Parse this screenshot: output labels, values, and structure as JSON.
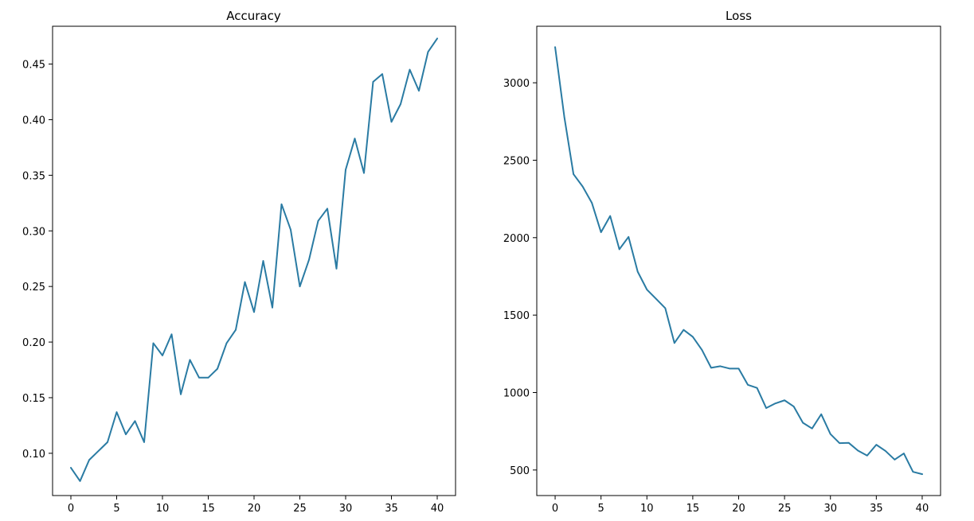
{
  "chart_data": [
    {
      "type": "line",
      "title": "Accuracy",
      "xlabel": "",
      "ylabel": "",
      "xlim": [
        -2,
        42
      ],
      "ylim": [
        0.062,
        0.484
      ],
      "xticks": [
        0,
        5,
        10,
        15,
        20,
        25,
        30,
        35,
        40
      ],
      "yticks": [
        0.1,
        0.15,
        0.2,
        0.25,
        0.3,
        0.35,
        0.4,
        0.45
      ],
      "ytick_labels": [
        "0.10",
        "0.15",
        "0.20",
        "0.25",
        "0.30",
        "0.35",
        "0.40",
        "0.45"
      ],
      "grid": false,
      "color": "#2a7ba3",
      "x": [
        0,
        1,
        2,
        3,
        4,
        5,
        6,
        7,
        8,
        9,
        10,
        11,
        12,
        13,
        14,
        15,
        16,
        17,
        18,
        19,
        20,
        21,
        22,
        23,
        24,
        25,
        26,
        27,
        28,
        29,
        30,
        31,
        32,
        33,
        34,
        35,
        36,
        37,
        38,
        39,
        40
      ],
      "values": [
        0.087,
        0.075,
        0.094,
        0.102,
        0.11,
        0.137,
        0.117,
        0.129,
        0.11,
        0.199,
        0.188,
        0.207,
        0.153,
        0.184,
        0.168,
        0.168,
        0.176,
        0.199,
        0.211,
        0.254,
        0.227,
        0.273,
        0.231,
        0.324,
        0.301,
        0.25,
        0.274,
        0.309,
        0.32,
        0.266,
        0.355,
        0.383,
        0.352,
        0.434,
        0.441,
        0.398,
        0.414,
        0.445,
        0.426,
        0.461,
        0.473
      ]
    },
    {
      "type": "line",
      "title": "Loss",
      "xlabel": "",
      "ylabel": "",
      "xlim": [
        -2,
        42
      ],
      "ylim": [
        335,
        3365
      ],
      "xticks": [
        0,
        5,
        10,
        15,
        20,
        25,
        30,
        35,
        40
      ],
      "yticks": [
        500,
        1000,
        1500,
        2000,
        2500,
        3000
      ],
      "ytick_labels": [
        "500",
        "1000",
        "1500",
        "2000",
        "2500",
        "3000"
      ],
      "grid": false,
      "color": "#2a7ba3",
      "x": [
        0,
        1,
        2,
        3,
        4,
        5,
        6,
        7,
        8,
        9,
        10,
        11,
        12,
        13,
        14,
        15,
        16,
        17,
        18,
        19,
        20,
        21,
        22,
        23,
        24,
        25,
        26,
        27,
        28,
        29,
        30,
        31,
        32,
        33,
        34,
        35,
        36,
        37,
        38,
        39,
        40
      ],
      "values": [
        3230,
        2780,
        2410,
        2330,
        2225,
        2035,
        2140,
        1925,
        2005,
        1780,
        1665,
        1605,
        1545,
        1320,
        1405,
        1360,
        1275,
        1160,
        1170,
        1155,
        1155,
        1050,
        1030,
        900,
        930,
        950,
        910,
        805,
        768,
        860,
        732,
        673,
        675,
        625,
        593,
        663,
        623,
        567,
        607,
        488,
        473
      ]
    }
  ]
}
